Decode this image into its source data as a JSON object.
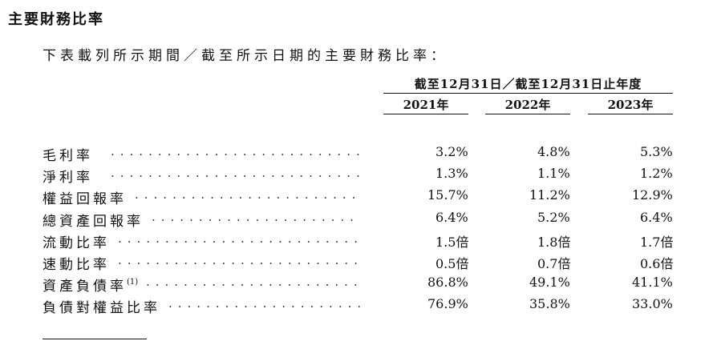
{
  "section_title": "主要財務比率",
  "intro": "下表載列所示期間／截至所示日期的主要財務比率：",
  "table": {
    "group_header": "截至12月31日／截至12月31日止年度",
    "columns": [
      "2021年",
      "2022年",
      "2023年"
    ],
    "rows": [
      {
        "label": "毛利率",
        "note": "",
        "values": [
          "3.2%",
          "4.8%",
          "5.3%"
        ]
      },
      {
        "label": "淨利率",
        "note": "",
        "values": [
          "1.3%",
          "1.1%",
          "1.2%"
        ]
      },
      {
        "label": "權益回報率",
        "note": "",
        "values": [
          "15.7%",
          "11.2%",
          "12.9%"
        ]
      },
      {
        "label": "總資產回報率",
        "note": "",
        "values": [
          "6.4%",
          "5.2%",
          "6.4%"
        ]
      },
      {
        "label": "流動比率",
        "note": "",
        "values": [
          "1.5倍",
          "1.8倍",
          "1.7倍"
        ]
      },
      {
        "label": "速動比率",
        "note": "",
        "values": [
          "0.5倍",
          "0.7倍",
          "0.6倍"
        ]
      },
      {
        "label": "資產負債率",
        "note": "(1)",
        "values": [
          "86.8%",
          "49.1%",
          "41.1%"
        ]
      },
      {
        "label": "負債對權益比率",
        "note": "",
        "values": [
          "76.9%",
          "35.8%",
          "33.0%"
        ]
      }
    ]
  }
}
